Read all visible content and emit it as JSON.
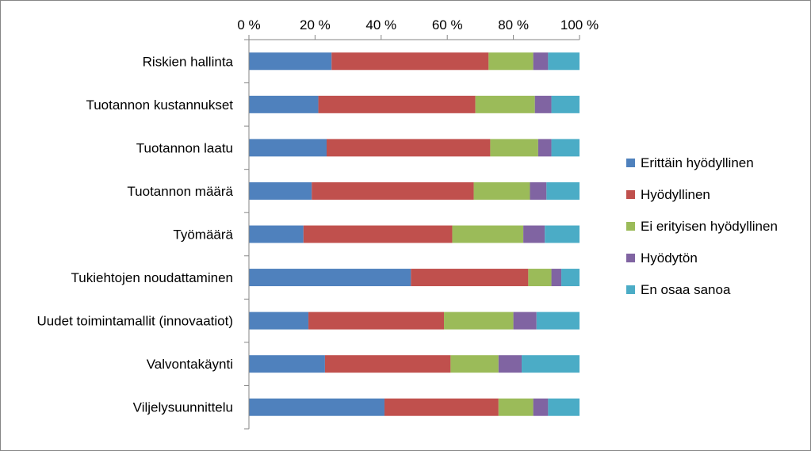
{
  "chart_data": {
    "type": "bar",
    "orientation": "horizontal",
    "stacked": "percent",
    "title": "",
    "xlabel": "",
    "ylabel": "",
    "xlim": [
      0,
      100
    ],
    "tick_labels": [
      "0 %",
      "20 %",
      "40 %",
      "60 %",
      "80 %",
      "100 %"
    ],
    "grid": false,
    "legend_position": "right",
    "categories": [
      "Riskien hallinta",
      "Tuotannon kustannukset",
      "Tuotannon laatu",
      "Tuotannon määrä",
      "Työmäärä",
      "Tukiehtojen noudattaminen",
      "Uudet toimintamallit (innovaatiot)",
      "Valvontakäynti",
      "Viljelysuunnittelu"
    ],
    "series": [
      {
        "name": "Erittäin hyödyllinen",
        "color": "#4f81bd",
        "values": [
          25,
          21,
          23.5,
          19,
          16.5,
          49,
          18,
          23,
          41
        ]
      },
      {
        "name": "Hyödyllinen",
        "color": "#c0504d",
        "values": [
          47.5,
          47.5,
          49.5,
          49,
          45,
          35.5,
          41,
          38,
          34.5
        ]
      },
      {
        "name": "Ei erityisen hyödyllinen",
        "color": "#9bbb59",
        "values": [
          13.5,
          18,
          14.5,
          17,
          21.5,
          7,
          21,
          14.5,
          10.5
        ]
      },
      {
        "name": "Hyödytön",
        "color": "#8064a2",
        "values": [
          4.5,
          5,
          4,
          5,
          6.5,
          3,
          7,
          7,
          4.5
        ]
      },
      {
        "name": "En osaa sanoa",
        "color": "#4bacc6",
        "values": [
          9.5,
          8.5,
          8.5,
          10,
          10.5,
          5.5,
          13,
          17.5,
          9.5
        ]
      }
    ]
  }
}
